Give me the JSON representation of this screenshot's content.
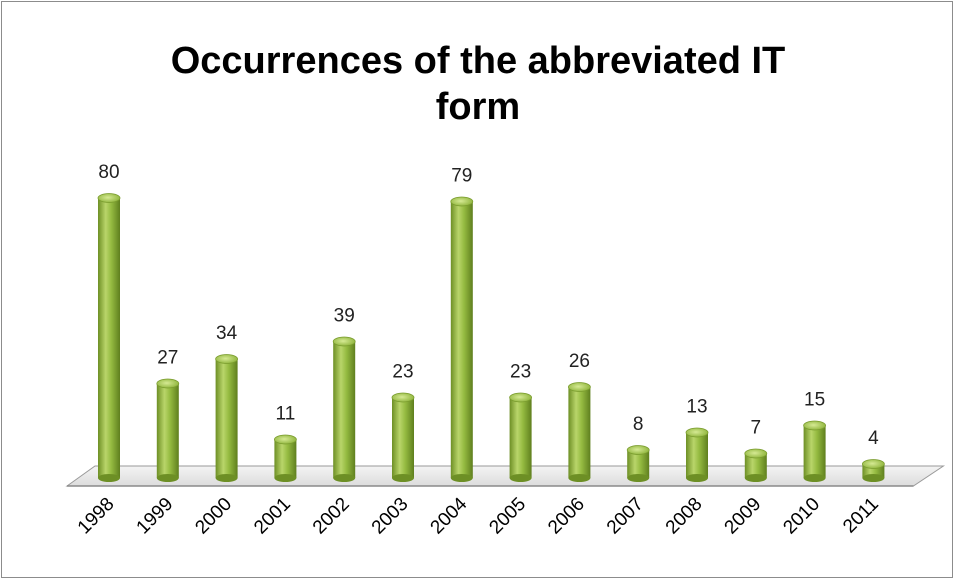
{
  "chart_data": {
    "type": "bar",
    "title_line1": "Occurrences of the abbreviated IT",
    "title_line2": "form",
    "categories": [
      "1998",
      "1999",
      "2000",
      "2001",
      "2002",
      "2003",
      "2004",
      "2005",
      "2006",
      "2007",
      "2008",
      "2009",
      "2010",
      "2011"
    ],
    "values": [
      80,
      27,
      34,
      11,
      39,
      23,
      79,
      23,
      26,
      8,
      13,
      7,
      15,
      4
    ],
    "xlabel": "",
    "ylabel": "",
    "ylim": [
      0,
      80
    ],
    "grid": false,
    "legend": "none",
    "bar_color": "#8db33a",
    "bar_highlight": "#c8e07c",
    "bar_shadow": "#5f7f1e"
  }
}
